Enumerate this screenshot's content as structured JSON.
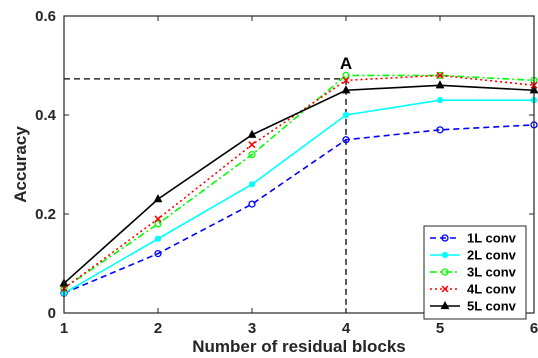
{
  "chart_data": {
    "type": "line",
    "xlabel": "Number of residual blocks",
    "ylabel": "Accuracy",
    "x": [
      1,
      2,
      3,
      4,
      5,
      6
    ],
    "xticks": [
      "1",
      "2",
      "3",
      "4",
      "5",
      "6"
    ],
    "yticks": [
      "0",
      "0.2",
      "0.4",
      "0.6"
    ],
    "xlim": [
      1,
      6
    ],
    "ylim": [
      0,
      0.6
    ],
    "grid": false,
    "legend_position": "bottom-right",
    "series": [
      {
        "name": "1L conv",
        "values": [
          0.04,
          0.12,
          0.22,
          0.35,
          0.37,
          0.38
        ],
        "color": "#0000ff",
        "line": "dashed",
        "marker": "circle"
      },
      {
        "name": "2L conv",
        "values": [
          0.04,
          0.15,
          0.26,
          0.4,
          0.43,
          0.43
        ],
        "color": "#00ffff",
        "line": "solid",
        "marker": "dot"
      },
      {
        "name": "3L conv",
        "values": [
          0.05,
          0.18,
          0.32,
          0.48,
          0.48,
          0.47
        ],
        "color": "#00ff00",
        "line": "dashdot",
        "marker": "circle"
      },
      {
        "name": "4L conv",
        "values": [
          0.05,
          0.19,
          0.34,
          0.47,
          0.48,
          0.46
        ],
        "color": "#ff0000",
        "line": "dotted",
        "marker": "x"
      },
      {
        "name": "5L conv",
        "values": [
          0.06,
          0.23,
          0.36,
          0.45,
          0.46,
          0.45
        ],
        "color": "#000000",
        "line": "solid",
        "marker": "triangle"
      }
    ],
    "annotation": {
      "label": "A",
      "x": 4,
      "y": 0.473
    }
  }
}
